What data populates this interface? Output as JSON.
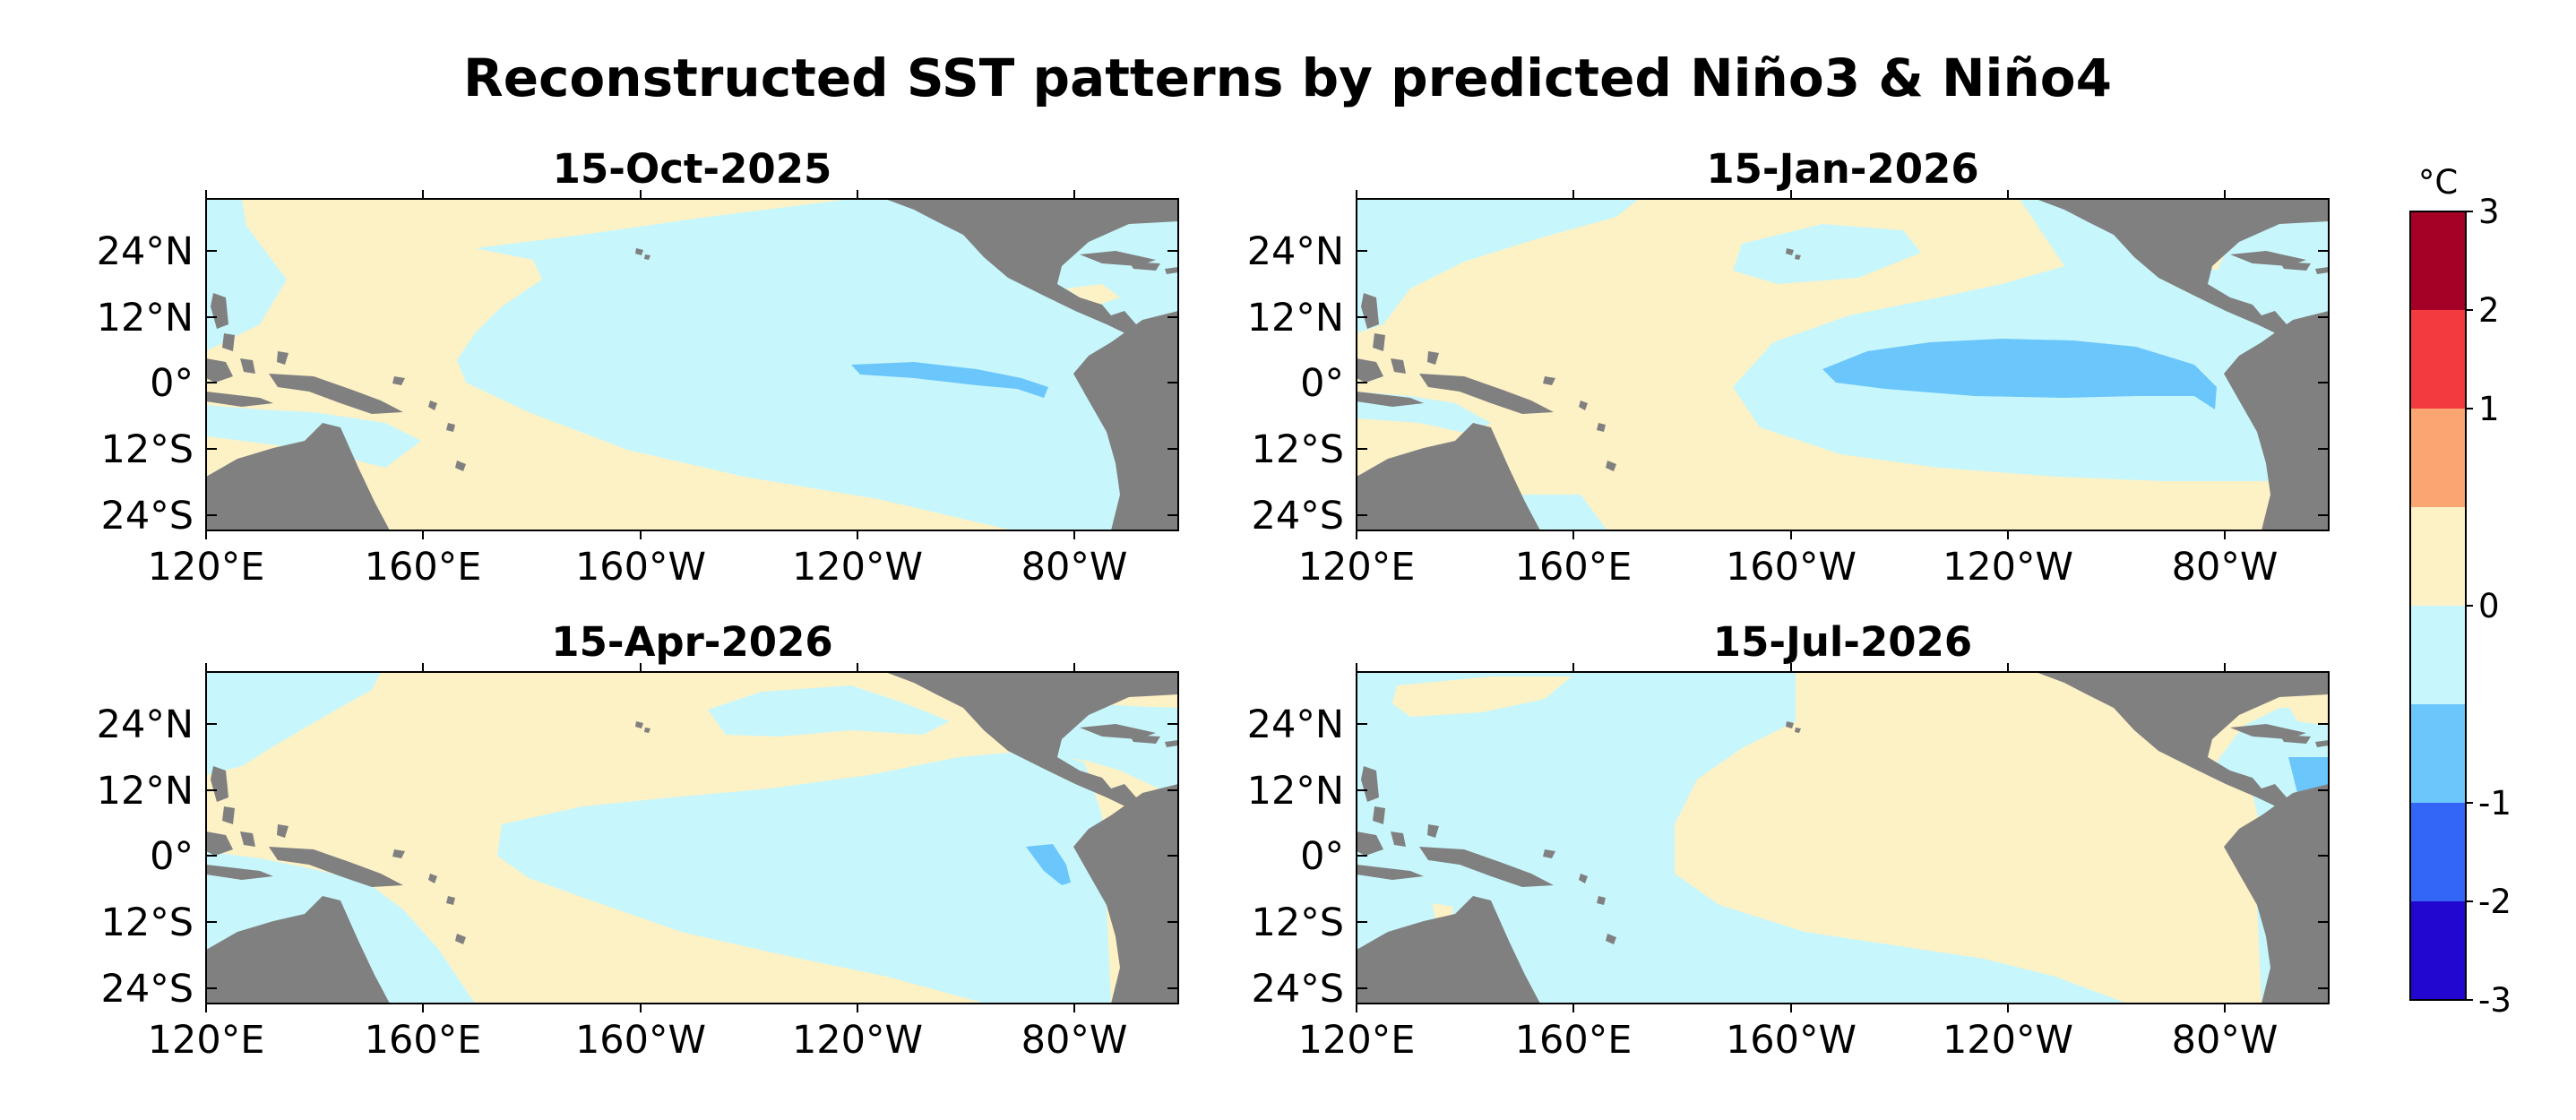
{
  "figure": {
    "title": "Reconstructed SST patterns by predicted Niño3 & Niño4"
  },
  "panels": [
    {
      "title": "15-Oct-2025",
      "layout": "oct"
    },
    {
      "title": "15-Jan-2026",
      "layout": "jan"
    },
    {
      "title": "15-Apr-2026",
      "layout": "apr"
    },
    {
      "title": "15-Jul-2026",
      "layout": "jul"
    }
  ],
  "axes": {
    "lat_ticks": [
      "24°N",
      "12°N",
      "0°",
      "12°S",
      "24°S"
    ],
    "lon_ticks": [
      "120°E",
      "160°E",
      "160°W",
      "120°W",
      "80°W"
    ]
  },
  "colorbar": {
    "unit": "°C",
    "tick_labels": [
      "3",
      "2",
      "1",
      "0",
      "-1",
      "-2",
      "-3"
    ],
    "bins": [
      {
        "range": "2 to 3",
        "color": "#a50026"
      },
      {
        "range": "1 to 2",
        "color": "#f33a3f"
      },
      {
        "range": "0.5 to 1",
        "color": "#fba672"
      },
      {
        "range": "0 to 0.5",
        "color": "#fdf1c6"
      },
      {
        "range": "-0.5 to 0",
        "color": "#c7f7fc"
      },
      {
        "range": "-1 to -0.5",
        "color": "#6bc6fc"
      },
      {
        "range": "-2 to -1",
        "color": "#3366f7"
      },
      {
        "range": "-3 to -2",
        "color": "#2207d0"
      }
    ]
  },
  "colors": {
    "land": "#808080",
    "warm_light": "#fdf1c6",
    "cool_light": "#c7f7fc",
    "cool_medium": "#6bc6fc"
  },
  "chart_data": {
    "type": "heatmap",
    "title": "Reconstructed SST patterns by predicted Niño3 & Niño4",
    "panels": [
      "15-Oct-2025",
      "15-Jan-2026",
      "15-Apr-2026",
      "15-Jul-2026"
    ],
    "x_ticks": [
      "120°E",
      "160°E",
      "160°W",
      "120°W",
      "80°W"
    ],
    "y_ticks": [
      "24°N",
      "12°N",
      "0°",
      "12°S",
      "24°S"
    ],
    "colorbar_unit": "°C",
    "colorbar_levels": [
      -3,
      -2,
      -1,
      0,
      1,
      2,
      3
    ]
  }
}
